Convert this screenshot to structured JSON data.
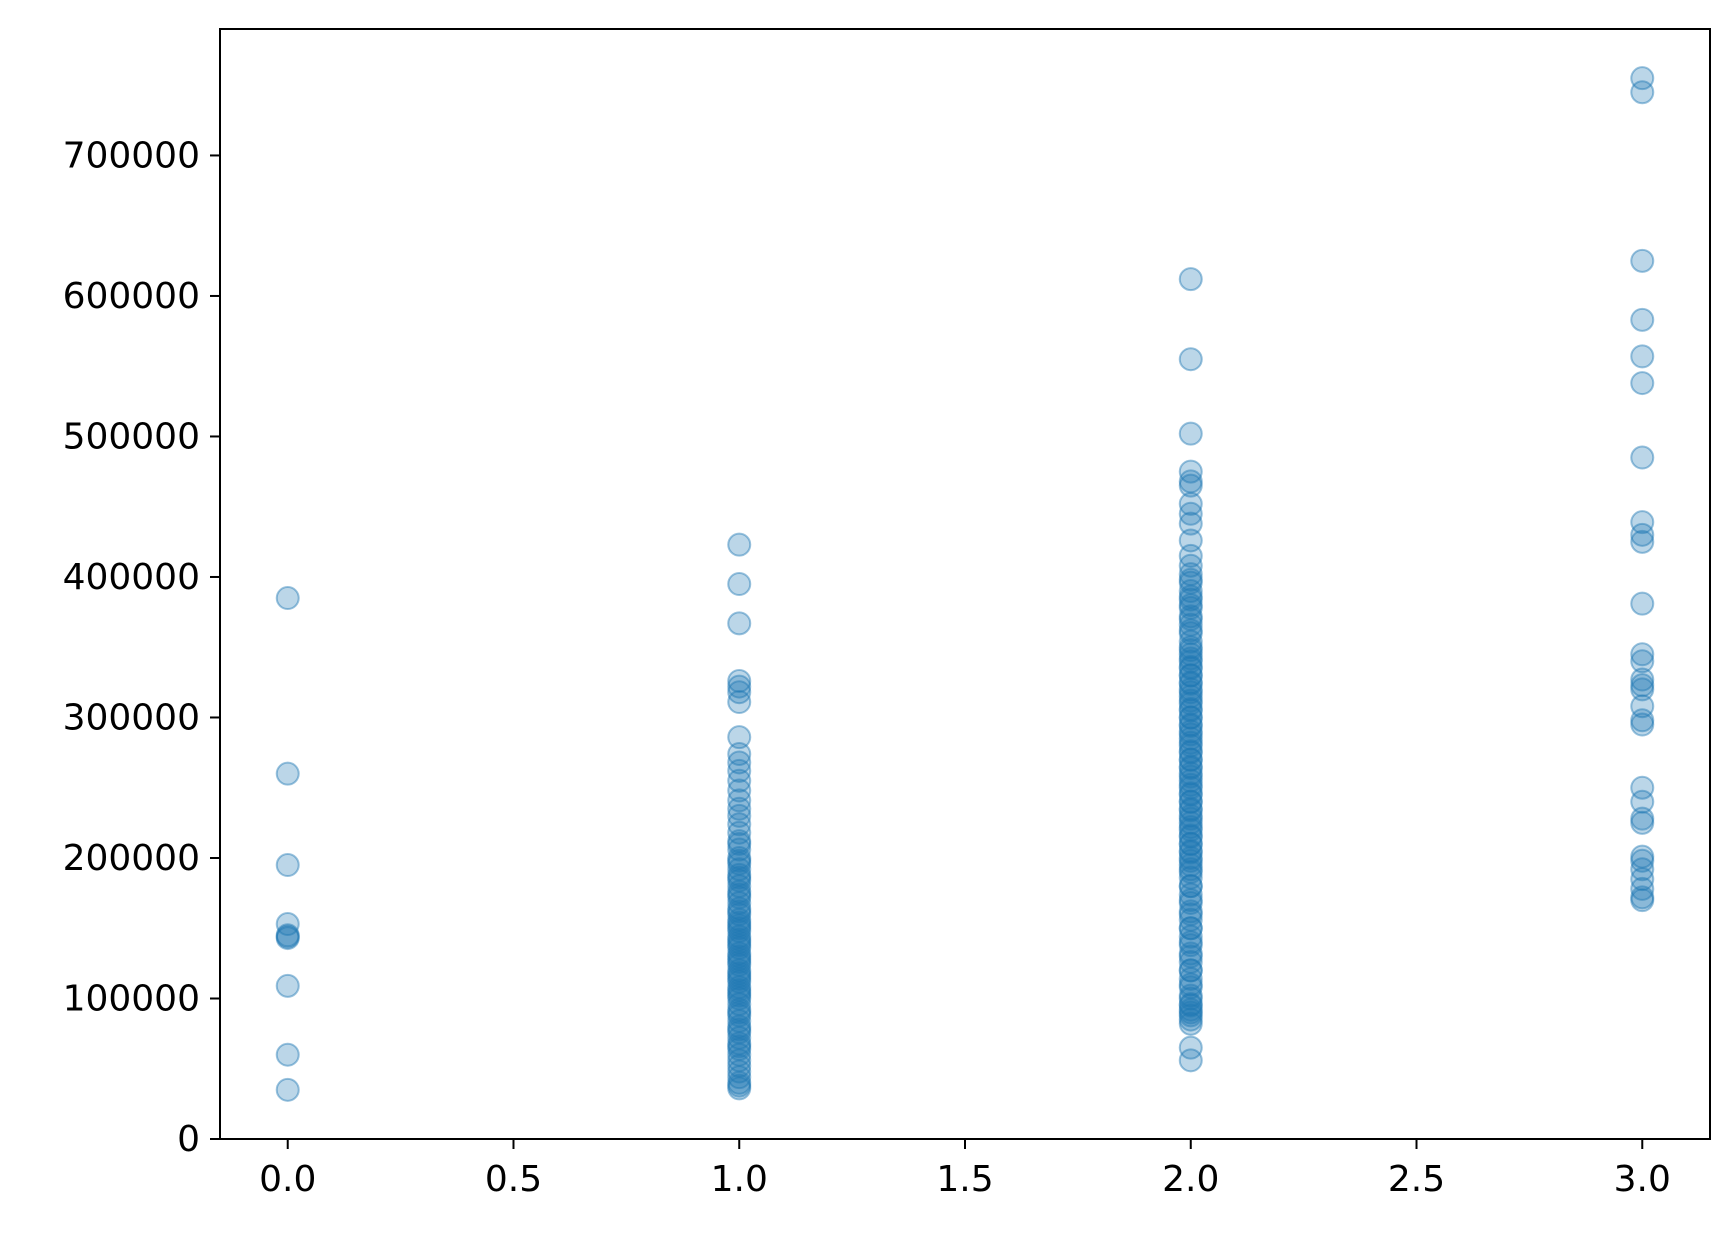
{
  "chart_data": {
    "type": "scatter",
    "title": "",
    "xlabel": "",
    "ylabel": "",
    "xlim": [
      -0.15,
      3.15
    ],
    "ylim": [
      0,
      790000
    ],
    "xticks": [
      0.0,
      0.5,
      1.0,
      1.5,
      2.0,
      2.5,
      3.0
    ],
    "xtick_labels": [
      "0.0",
      "0.5",
      "1.0",
      "1.5",
      "2.0",
      "2.5",
      "3.0"
    ],
    "yticks": [
      0,
      100000,
      200000,
      300000,
      400000,
      500000,
      600000,
      700000
    ],
    "ytick_labels": [
      "0",
      "100000",
      "200000",
      "300000",
      "400000",
      "500000",
      "600000",
      "700000"
    ],
    "grid": false,
    "marker_color": "#1f77b4",
    "marker_alpha": 0.3,
    "series": [
      {
        "x": [
          0,
          0,
          0,
          0,
          0,
          0,
          0,
          0,
          0,
          0
        ],
        "y": [
          385000,
          260000,
          195000,
          153000,
          145000,
          143000,
          109000,
          60000,
          35000,
          144000
        ]
      },
      {
        "x": [
          1,
          1,
          1,
          1,
          1,
          1,
          1,
          1,
          1,
          1,
          1,
          1,
          1,
          1,
          1,
          1,
          1,
          1,
          1,
          1,
          1,
          1,
          1,
          1,
          1,
          1,
          1,
          1,
          1,
          1,
          1,
          1,
          1,
          1,
          1,
          1,
          1,
          1,
          1,
          1,
          1,
          1,
          1,
          1,
          1,
          1,
          1,
          1,
          1,
          1,
          1,
          1,
          1,
          1,
          1,
          1,
          1,
          1,
          1,
          1,
          1,
          1,
          1,
          1,
          1,
          1,
          1,
          1,
          1,
          1,
          1,
          1,
          1,
          1,
          1,
          1,
          1,
          1,
          1,
          1,
          1
        ],
        "y": [
          423000,
          395000,
          367000,
          326000,
          322000,
          318000,
          311000,
          286000,
          274000,
          268000,
          262000,
          255000,
          248000,
          241000,
          235000,
          230000,
          224000,
          218000,
          212000,
          206000,
          200000,
          196000,
          192000,
          188000,
          184000,
          180000,
          176000,
          172000,
          168000,
          164000,
          160000,
          156000,
          152000,
          148000,
          144000,
          140000,
          136000,
          132000,
          128000,
          124000,
          120000,
          116000,
          112000,
          108000,
          104000,
          100000,
          96000,
          92000,
          88000,
          84000,
          80000,
          76000,
          72000,
          68000,
          64000,
          60000,
          56000,
          52000,
          48000,
          44000,
          40000,
          38000,
          36000,
          174000,
          162000,
          150000,
          138000,
          126000,
          114000,
          102000,
          90000,
          78000,
          66000,
          186000,
          198000,
          210000,
          154000,
          142000,
          130000,
          118000,
          106000
        ]
      },
      {
        "x": [
          2,
          2,
          2,
          2,
          2,
          2,
          2,
          2,
          2,
          2,
          2,
          2,
          2,
          2,
          2,
          2,
          2,
          2,
          2,
          2,
          2,
          2,
          2,
          2,
          2,
          2,
          2,
          2,
          2,
          2,
          2,
          2,
          2,
          2,
          2,
          2,
          2,
          2,
          2,
          2,
          2,
          2,
          2,
          2,
          2,
          2,
          2,
          2,
          2,
          2,
          2,
          2,
          2,
          2,
          2,
          2,
          2,
          2,
          2,
          2,
          2,
          2,
          2,
          2,
          2,
          2,
          2,
          2,
          2,
          2,
          2,
          2,
          2,
          2,
          2,
          2,
          2,
          2,
          2,
          2,
          2,
          2,
          2,
          2,
          2,
          2,
          2,
          2,
          2,
          2,
          2,
          2,
          2,
          2,
          2,
          2,
          2,
          2,
          2,
          2,
          2,
          2,
          2,
          2,
          2,
          2,
          2,
          2,
          2,
          2,
          2,
          2,
          2,
          2,
          2,
          2,
          2,
          2,
          2
        ],
        "y": [
          612000,
          555000,
          502000,
          475000,
          468000,
          465000,
          452000,
          445000,
          438000,
          426000,
          415000,
          408000,
          402000,
          396000,
          390000,
          384000,
          378000,
          372000,
          366000,
          360000,
          354000,
          348000,
          342000,
          336000,
          330000,
          324000,
          318000,
          312000,
          306000,
          300000,
          294000,
          288000,
          282000,
          276000,
          270000,
          264000,
          258000,
          252000,
          246000,
          240000,
          234000,
          228000,
          222000,
          216000,
          210000,
          204000,
          198000,
          192000,
          186000,
          180000,
          174000,
          168000,
          162000,
          156000,
          150000,
          144000,
          138000,
          132000,
          126000,
          120000,
          114000,
          108000,
          102000,
          96000,
          90000,
          85000,
          82000,
          65000,
          56000,
          380000,
          370000,
          340000,
          320000,
          300000,
          280000,
          260000,
          240000,
          220000,
          200000,
          180000,
          160000,
          140000,
          120000,
          100000,
          330000,
          310000,
          290000,
          270000,
          250000,
          230000,
          210000,
          190000,
          170000,
          150000,
          130000,
          110000,
          95000,
          88000,
          92000,
          398000,
          386000,
          362000,
          350000,
          345000,
          335000,
          325000,
          315000,
          305000,
          295000,
          285000,
          275000,
          265000,
          255000,
          245000,
          235000,
          225000,
          215000,
          205000,
          195000
        ]
      },
      {
        "x": [
          3,
          3,
          3,
          3,
          3,
          3,
          3,
          3,
          3,
          3,
          3,
          3,
          3,
          3,
          3,
          3,
          3,
          3,
          3,
          3,
          3,
          3,
          3,
          3,
          3,
          3,
          3,
          3,
          3,
          3
        ],
        "y": [
          755000,
          745000,
          625000,
          583000,
          557000,
          538000,
          485000,
          439000,
          430000,
          425000,
          381000,
          345000,
          340000,
          327000,
          323000,
          308000,
          298000,
          295000,
          250000,
          240000,
          228000,
          225000,
          201000,
          198000,
          185000,
          178000,
          172000,
          170000,
          192000,
          320000
        ]
      }
    ]
  }
}
